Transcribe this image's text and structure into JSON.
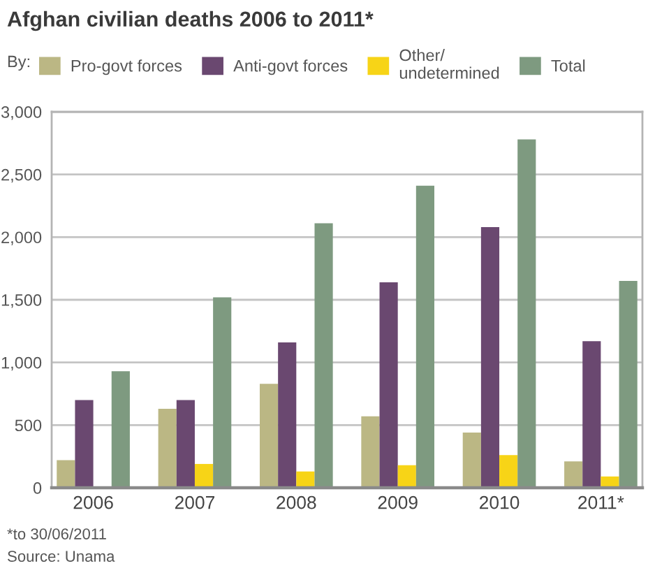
{
  "chart_data": {
    "type": "bar",
    "title": "Afghan civilian deaths 2006 to 2011*",
    "legend_title": "By:",
    "legend": "top",
    "grid": "y",
    "categories": [
      "2006",
      "2007",
      "2008",
      "2009",
      "2010",
      "2011*"
    ],
    "series": [
      {
        "name": "Pro-govt forces",
        "color": "#bbb784",
        "values": [
          220,
          630,
          830,
          570,
          440,
          210
        ]
      },
      {
        "name": "Anti-govt forces",
        "color": "#6a4870",
        "values": [
          700,
          700,
          1160,
          1640,
          2080,
          1170
        ]
      },
      {
        "name": "Other/\nundetermined",
        "color": "#f7d417",
        "values": [
          null,
          190,
          130,
          180,
          260,
          90
        ]
      },
      {
        "name": "Total",
        "color": "#7e9a80",
        "values": [
          930,
          1520,
          2110,
          2410,
          2780,
          1650
        ]
      }
    ],
    "ylim": [
      0,
      3000
    ],
    "yticks": [
      0,
      500,
      {
        "value": 1000,
        "label": "1,000"
      },
      {
        "value": 1500,
        "label": "1,500"
      },
      {
        "value": 2000,
        "label": "2,000"
      },
      {
        "value": 2500,
        "label": "2,500"
      },
      {
        "value": 3000,
        "label": "3,000"
      }
    ],
    "annotations": [
      "*to 30/06/2011",
      "Source: Unama"
    ]
  }
}
